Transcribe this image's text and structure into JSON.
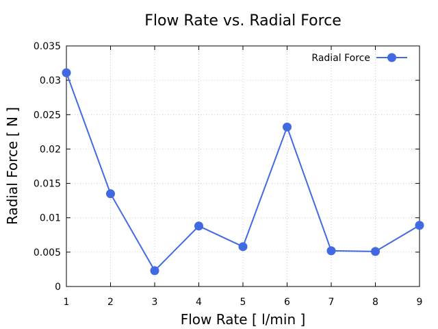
{
  "chart_data": {
    "type": "line",
    "title": "Flow Rate vs. Radial Force",
    "xlabel": "Flow Rate [ l/min ]",
    "ylabel": "Radial Force [ N ]",
    "xlim": [
      1,
      9
    ],
    "ylim": [
      0,
      0.035
    ],
    "x_ticks": [
      "1",
      "2",
      "3",
      "4",
      "5",
      "6",
      "7",
      "8",
      "9"
    ],
    "y_ticks": [
      "0",
      "0.005",
      "0.01",
      "0.015",
      "0.02",
      "0.025",
      "0.03",
      "0.035"
    ],
    "grid": true,
    "legend_position": "top-right",
    "series": [
      {
        "name": "Radial Force",
        "color": "#4169e1",
        "x": [
          1,
          2,
          3,
          4,
          5,
          6,
          7,
          8,
          9
        ],
        "values": [
          0.0311,
          0.0135,
          0.0023,
          0.0088,
          0.0058,
          0.0232,
          0.0052,
          0.0051,
          0.0089
        ]
      }
    ]
  }
}
